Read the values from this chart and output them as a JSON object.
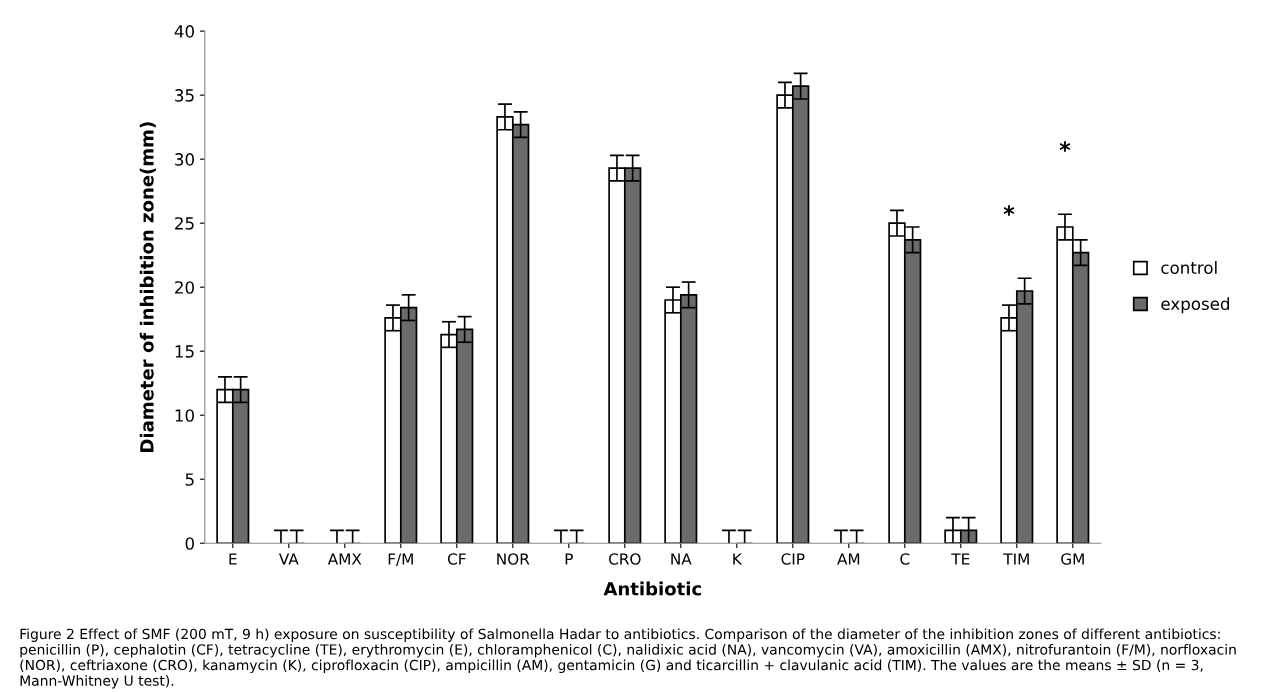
{
  "chart_data": {
    "type": "bar",
    "xlabel": "Antibiotic",
    "ylabel": "Diameter of inhibition zone(mm)",
    "categories": [
      "E",
      "VA",
      "AMX",
      "F/M",
      "CF",
      "NOR",
      "P",
      "CRO",
      "NA",
      "K",
      "CIP",
      "AM",
      "C",
      "TE",
      "TIM",
      "GM"
    ],
    "series": [
      {
        "name": "control",
        "color": "#ffffff",
        "values": [
          12,
          0,
          0,
          17.6,
          16.3,
          33.3,
          0,
          29.3,
          19,
          0,
          35,
          0,
          25,
          1,
          17.6,
          24.7
        ],
        "errors": [
          1,
          1,
          1,
          1,
          1,
          1,
          1,
          1,
          1,
          1,
          1,
          1,
          1,
          1,
          1,
          1
        ]
      },
      {
        "name": "exposed",
        "color": "#6b6b6b",
        "values": [
          12,
          0,
          0,
          18.4,
          16.7,
          32.7,
          0,
          29.3,
          19.4,
          0,
          35.7,
          0,
          23.7,
          1,
          19.7,
          22.7
        ],
        "errors": [
          1,
          1,
          1,
          1,
          1,
          1,
          1,
          1,
          1,
          1,
          1,
          1,
          1,
          1,
          1,
          1
        ]
      }
    ],
    "ylim": [
      0,
      40
    ],
    "yticks": [
      0,
      5,
      10,
      15,
      20,
      25,
      30,
      35,
      40
    ],
    "legend": "right",
    "grid": false,
    "annotations": [
      "*",
      "*",
      "Figure 2 Effect of SMF (200 mT, 9 h) exposure on susceptibility of Salmonella Hadar to antibiotics. Comparison of the diameter of the inhibition zones of different antibiotics: penicillin (P), cephalotin (CF), tetracycline (TE), erythromycin (E), chloramphenicol (C), nalidixic acid (NA), vancomycin (VA), amoxicillin (AMX), nitrofurantoin (F/M), norfloxacin (NOR), ceftriaxone (CRO), kanamycin (K), ciprofloxacin (CIP), ampicillin (AM), gentamicin (G) and ticarcillin + clavulanic acid (TIM). The values are the means ± SD (n = 3, Mann-Whitney U test)."
    ]
  }
}
